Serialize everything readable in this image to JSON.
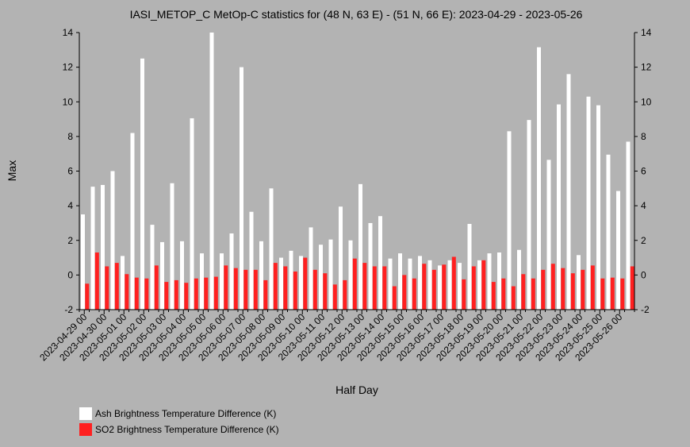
{
  "chart_data": {
    "type": "bar",
    "title": "IASI_METOP_C MetOp-C statistics for (48 N, 63 E) - (51 N, 66 E): 2023-04-29 - 2023-05-26",
    "xlabel": "Half Day",
    "ylabel": "Max",
    "ylim": [
      -2,
      14
    ],
    "yticks": [
      -2,
      0,
      2,
      4,
      6,
      8,
      10,
      12,
      14
    ],
    "grid": false,
    "legend_position": "bottom-left",
    "tick_labels": [
      "2023-04-29 00",
      "2023-04-30 00",
      "2023-05-01 00",
      "2023-05-02 00",
      "2023-05-03 00",
      "2023-05-04 00",
      "2023-05-05 00",
      "2023-05-06 00",
      "2023-05-07 00",
      "2023-05-08 00",
      "2023-05-09 00",
      "2023-05-10 00",
      "2023-05-11 00",
      "2023-05-12 00",
      "2023-05-13 00",
      "2023-05-14 00",
      "2023-05-15 00",
      "2023-05-16 00",
      "2023-05-17 00",
      "2023-05-18 00",
      "2023-05-19 00",
      "2023-05-20 00",
      "2023-05-21 00",
      "2023-05-22 00",
      "2023-05-23 00",
      "2023-05-24 00",
      "2023-05-25 00",
      "2023-05-26 00"
    ],
    "series": [
      {
        "name": "Ash Brightness Temperature Difference (K)",
        "color": "#ffffff",
        "values": [
          3.5,
          5.1,
          5.2,
          6.0,
          1.1,
          8.2,
          12.5,
          2.9,
          1.9,
          5.3,
          1.95,
          9.05,
          1.25,
          14.0,
          1.25,
          2.4,
          12.0,
          3.65,
          1.95,
          5.0,
          1.0,
          1.4,
          1.1,
          2.75,
          1.75,
          2.05,
          3.95,
          2.0,
          5.25,
          3.0,
          3.4,
          0.95,
          1.25,
          0.95,
          1.1,
          0.85,
          0.55,
          0.85,
          0.7,
          2.95,
          0.85,
          1.25,
          1.3,
          8.3,
          1.45,
          8.95,
          13.15,
          6.65,
          9.85,
          11.6,
          1.15,
          10.3,
          9.8,
          6.95,
          4.85,
          7.7
        ]
      },
      {
        "name": "SO2 Brightness Temperature Difference (K)",
        "color": "#ff2020",
        "values": [
          -0.5,
          1.3,
          0.5,
          0.7,
          0.05,
          -0.15,
          -0.2,
          0.55,
          -0.4,
          -0.3,
          -0.45,
          -0.2,
          -0.15,
          -0.1,
          0.55,
          0.4,
          0.3,
          0.3,
          -0.3,
          0.7,
          0.5,
          0.2,
          1.0,
          0.3,
          0.1,
          -0.55,
          -0.3,
          0.95,
          0.7,
          0.5,
          0.5,
          -0.65,
          0.0,
          -0.2,
          0.65,
          0.3,
          0.6,
          1.05,
          -0.25,
          0.5,
          0.85,
          -0.4,
          -0.2,
          -0.65,
          0.05,
          -0.2,
          0.3,
          0.65,
          0.4,
          0.1,
          0.3,
          0.55,
          -0.2,
          -0.15,
          -0.2,
          0.5
        ]
      }
    ]
  }
}
